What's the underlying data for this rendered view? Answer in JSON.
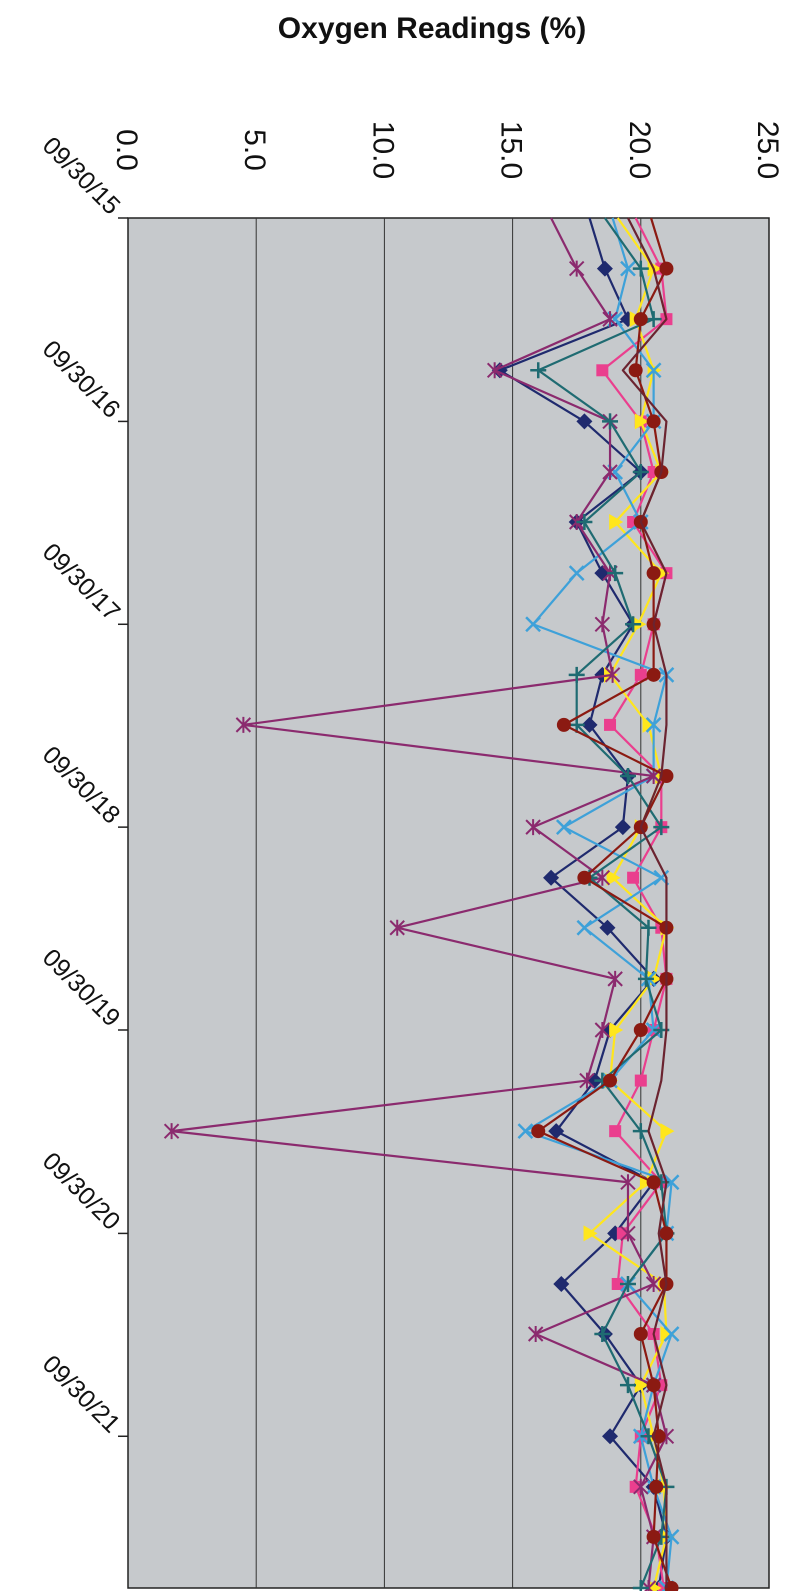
{
  "chart_data": {
    "type": "line",
    "title": "Oxygen Readings (%)",
    "orientation": "rotated-90-clockwise",
    "ylim": [
      0,
      25
    ],
    "yticks": [
      "0.0",
      "5.0",
      "10.0",
      "15.0",
      "20.0",
      "25.0"
    ],
    "xlim": [
      "2015-09-30",
      "2022-06-30"
    ],
    "xticks": [
      "09/30/15",
      "09/30/16",
      "09/30/17",
      "09/30/18",
      "09/30/19",
      "09/30/20",
      "09/30/21"
    ],
    "x": [
      "2015-12-30",
      "2016-03-30",
      "2016-06-30",
      "2016-09-30",
      "2016-12-30",
      "2017-03-30",
      "2017-06-30",
      "2017-09-30",
      "2017-12-30",
      "2018-03-30",
      "2018-06-30",
      "2018-09-30",
      "2018-12-30",
      "2019-03-30",
      "2019-06-30",
      "2019-09-30",
      "2019-12-30",
      "2020-03-30",
      "2020-06-30",
      "2020-09-30",
      "2020-12-30",
      "2021-03-30",
      "2021-06-30",
      "2021-09-30",
      "2021-12-30",
      "2022-03-30",
      "2022-06-30"
    ],
    "grid": true,
    "background": "#c6c9cc",
    "series": [
      {
        "color": "#1f2a6e",
        "marker": "diamond",
        "values": [
          18.6,
          19.5,
          14.5,
          17.8,
          20.0,
          17.5,
          18.5,
          19.7,
          18.5,
          18.0,
          19.5,
          19.3,
          16.5,
          18.7,
          20.5,
          18.8,
          18.2,
          16.7,
          20.5,
          19.0,
          16.9,
          18.6,
          20.0,
          18.8,
          20.5,
          21.0,
          20.7
        ]
      },
      {
        "color": "#ea3f8e",
        "marker": "square",
        "values": [
          20.8,
          21.0,
          18.5,
          20.0,
          20.5,
          19.7,
          21.0,
          20.5,
          20.0,
          18.8,
          20.8,
          20.8,
          19.7,
          20.8,
          21.0,
          20.5,
          20.0,
          19.0,
          20.8,
          19.3,
          19.1,
          20.5,
          20.8,
          20.0,
          19.8,
          20.6,
          20.9
        ]
      },
      {
        "color": "#ffe61c",
        "marker": "triangle",
        "values": [
          20.5,
          19.8,
          20.5,
          20.0,
          20.8,
          19.0,
          20.8,
          19.9,
          18.8,
          20.3,
          20.8,
          20.0,
          18.9,
          21.0,
          20.5,
          19.0,
          18.8,
          21.0,
          20.2,
          18.0,
          20.9,
          21.0,
          20.0,
          20.5,
          20.9,
          21.0,
          20.5
        ]
      },
      {
        "color": "#3ea1d9",
        "marker": "x",
        "values": [
          19.5,
          19.0,
          20.5,
          20.5,
          19.0,
          20.0,
          17.5,
          15.8,
          21.0,
          20.5,
          20.5,
          17.0,
          20.8,
          17.8,
          20.3,
          20.5,
          18.8,
          15.5,
          21.2,
          21.0,
          19.5,
          21.2,
          20.5,
          20.0,
          20.5,
          21.2,
          21.0
        ]
      },
      {
        "color": "#8b2a6e",
        "marker": "star",
        "values": [
          17.5,
          18.8,
          14.3,
          18.8,
          18.8,
          17.5,
          18.8,
          18.5,
          18.9,
          4.5,
          20.5,
          15.8,
          18.5,
          10.5,
          19.0,
          18.5,
          17.9,
          1.7,
          19.5,
          19.5,
          20.5,
          15.9,
          20.5,
          21.0,
          20.0,
          20.5,
          20.3
        ]
      },
      {
        "color": "#1f6b72",
        "marker": "plus",
        "values": [
          20.0,
          20.5,
          16.0,
          18.8,
          20.0,
          17.8,
          19.0,
          19.7,
          17.5,
          17.5,
          19.5,
          20.8,
          18.0,
          20.3,
          20.2,
          20.8,
          18.5,
          20.0,
          20.8,
          21.0,
          19.5,
          18.5,
          19.5,
          20.3,
          21.0,
          20.8,
          20.0
        ]
      },
      {
        "color": "#8b1a12",
        "marker": "circle",
        "values": [
          21.0,
          20.0,
          19.8,
          20.5,
          20.8,
          20.0,
          20.5,
          20.5,
          20.5,
          17.0,
          21.0,
          20.0,
          17.8,
          21.0,
          21.0,
          20.0,
          18.8,
          16.0,
          20.5,
          21.0,
          21.0,
          20.0,
          20.5,
          20.7,
          20.6,
          20.5,
          21.2
        ]
      },
      {
        "color": "#6b2430",
        "marker": "none",
        "values": [
          20.5,
          21.0,
          19.3,
          21.0,
          20.8,
          20.0,
          21.0,
          20.5,
          21.0,
          21.0,
          20.8,
          20.0,
          21.0,
          21.0,
          21.0,
          21.0,
          20.8,
          20.3,
          21.0,
          20.7,
          21.0,
          20.5,
          21.0,
          20.5,
          21.0,
          21.0,
          21.0
        ]
      }
    ]
  }
}
